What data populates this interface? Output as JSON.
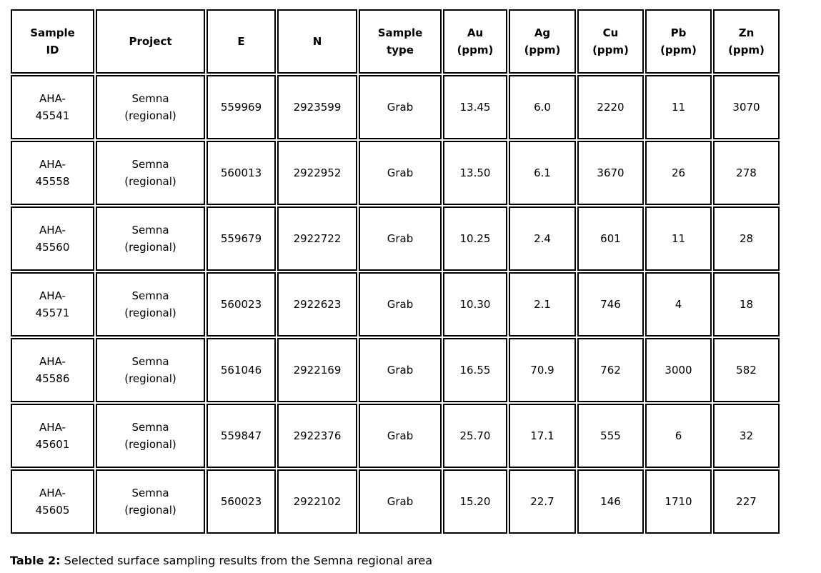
{
  "colors": {
    "background": "#ffffff",
    "border": "#000000",
    "text": "#000000"
  },
  "table": {
    "columns": [
      {
        "label": "Sample\nID"
      },
      {
        "label": "Project"
      },
      {
        "label": "E"
      },
      {
        "label": "N"
      },
      {
        "label": "Sample\ntype"
      },
      {
        "label": "Au\n(ppm)"
      },
      {
        "label": "Ag\n(ppm)"
      },
      {
        "label": "Cu\n(ppm)"
      },
      {
        "label": "Pb\n(ppm)"
      },
      {
        "label": "Zn\n(ppm)"
      }
    ],
    "rows": [
      [
        "AHA-\n45541",
        "Semna\n(regional)",
        "559969",
        "2923599",
        "Grab",
        "13.45",
        "6.0",
        "2220",
        "11",
        "3070"
      ],
      [
        "AHA-\n45558",
        "Semna\n(regional)",
        "560013",
        "2922952",
        "Grab",
        "13.50",
        "6.1",
        "3670",
        "26",
        "278"
      ],
      [
        "AHA-\n45560",
        "Semna\n(regional)",
        "559679",
        "2922722",
        "Grab",
        "10.25",
        "2.4",
        "601",
        "11",
        "28"
      ],
      [
        "AHA-\n45571",
        "Semna\n(regional)",
        "560023",
        "2922623",
        "Grab",
        "10.30",
        "2.1",
        "746",
        "4",
        "18"
      ],
      [
        "AHA-\n45586",
        "Semna\n(regional)",
        "561046",
        "2922169",
        "Grab",
        "16.55",
        "70.9",
        "762",
        "3000",
        "582"
      ],
      [
        "AHA-\n45601",
        "Semna\n(regional)",
        "559847",
        "2922376",
        "Grab",
        "25.70",
        "17.1",
        "555",
        "6",
        "32"
      ],
      [
        "AHA-\n45605",
        "Semna\n(regional)",
        "560023",
        "2922102",
        "Grab",
        "15.20",
        "22.7",
        "146",
        "1710",
        "227"
      ]
    ]
  },
  "caption": {
    "label": "Table 2:",
    "text": " Selected surface sampling results from the Semna regional area"
  }
}
